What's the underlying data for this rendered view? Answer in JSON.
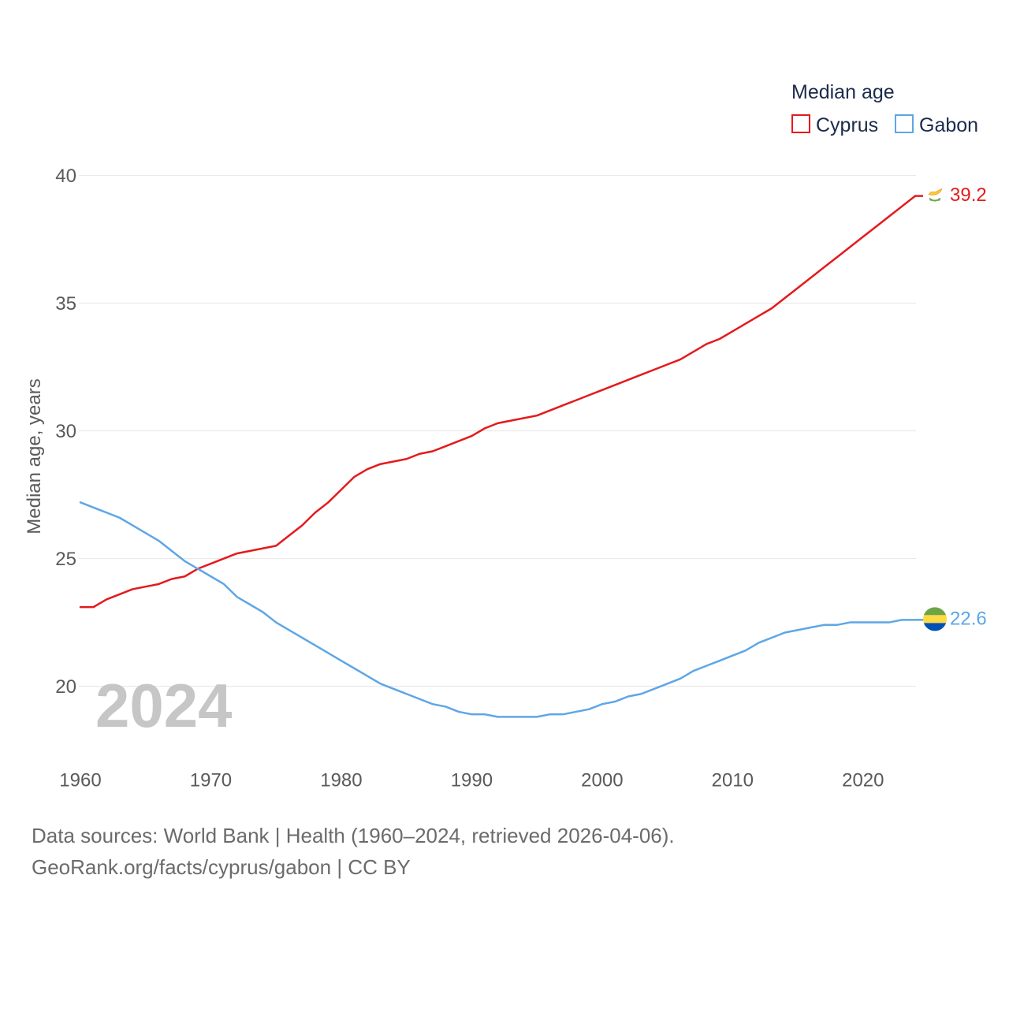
{
  "chart_data": {
    "type": "line",
    "legend_title": "Median age",
    "legend_position": "top-right",
    "ylabel": "Median age, years",
    "year_label": "2024",
    "grid": true,
    "xlim": [
      1960,
      2024
    ],
    "ylim": [
      17.3,
      40.7
    ],
    "xticks": [
      1960,
      1970,
      1980,
      1990,
      2000,
      2010,
      2020
    ],
    "yticks": [
      20,
      25,
      30,
      35,
      40
    ],
    "x": [
      1960,
      1961,
      1962,
      1963,
      1964,
      1965,
      1966,
      1967,
      1968,
      1969,
      1970,
      1971,
      1972,
      1973,
      1974,
      1975,
      1976,
      1977,
      1978,
      1979,
      1980,
      1981,
      1982,
      1983,
      1984,
      1985,
      1986,
      1987,
      1988,
      1989,
      1990,
      1991,
      1992,
      1993,
      1994,
      1995,
      1996,
      1997,
      1998,
      1999,
      2000,
      2001,
      2002,
      2003,
      2004,
      2005,
      2006,
      2007,
      2008,
      2009,
      2010,
      2011,
      2012,
      2013,
      2014,
      2015,
      2016,
      2017,
      2018,
      2019,
      2020,
      2021,
      2022,
      2023,
      2024
    ],
    "series": [
      {
        "name": "Cyprus",
        "color": "#e41a1c",
        "flag_icon": "cyprus-flag-icon",
        "end_label": "39.2",
        "values": [
          23.1,
          23.1,
          23.4,
          23.6,
          23.8,
          23.9,
          24.0,
          24.2,
          24.3,
          24.6,
          24.8,
          25.0,
          25.2,
          25.3,
          25.4,
          25.5,
          25.9,
          26.3,
          26.8,
          27.2,
          27.7,
          28.2,
          28.5,
          28.7,
          28.8,
          28.9,
          29.1,
          29.2,
          29.4,
          29.6,
          29.8,
          30.1,
          30.3,
          30.4,
          30.5,
          30.6,
          30.8,
          31.0,
          31.2,
          31.4,
          31.6,
          31.8,
          32.0,
          32.2,
          32.4,
          32.6,
          32.8,
          33.1,
          33.4,
          33.6,
          33.9,
          34.2,
          34.5,
          34.8,
          35.2,
          35.6,
          36.0,
          36.4,
          36.8,
          37.2,
          37.6,
          38.0,
          38.4,
          38.8,
          39.2
        ]
      },
      {
        "name": "Gabon",
        "color": "#5ea6e6",
        "flag_icon": "gabon-flag-icon",
        "end_label": "22.6",
        "values": [
          27.2,
          27.0,
          26.8,
          26.6,
          26.3,
          26.0,
          25.7,
          25.3,
          24.9,
          24.6,
          24.3,
          24.0,
          23.5,
          23.2,
          22.9,
          22.5,
          22.2,
          21.9,
          21.6,
          21.3,
          21.0,
          20.7,
          20.4,
          20.1,
          19.9,
          19.7,
          19.5,
          19.3,
          19.2,
          19.0,
          18.9,
          18.9,
          18.8,
          18.8,
          18.8,
          18.8,
          18.9,
          18.9,
          19.0,
          19.1,
          19.3,
          19.4,
          19.6,
          19.7,
          19.9,
          20.1,
          20.3,
          20.6,
          20.8,
          21.0,
          21.2,
          21.4,
          21.7,
          21.9,
          22.1,
          22.2,
          22.3,
          22.4,
          22.4,
          22.5,
          22.5,
          22.5,
          22.5,
          22.6,
          22.6
        ]
      }
    ]
  },
  "footer": {
    "source_line": "Data sources: World Bank | Health (1960–2024, retrieved 2026-04-06).",
    "credit_line": "GeoRank.org/facts/cyprus/gabon | CC BY"
  }
}
